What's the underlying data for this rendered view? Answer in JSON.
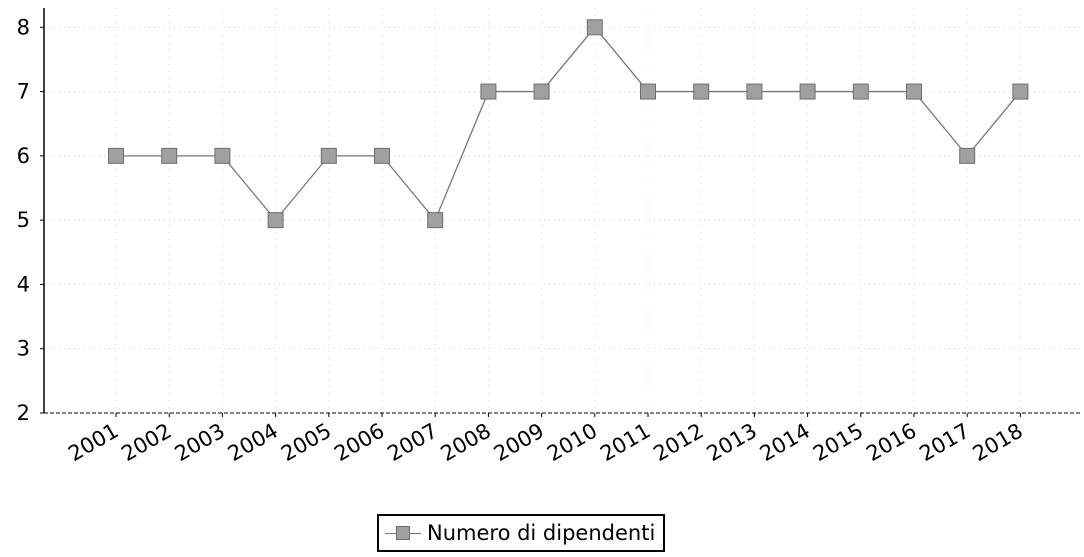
{
  "chart_data": {
    "type": "line",
    "categories": [
      "2001",
      "2002",
      "2003",
      "2004",
      "2005",
      "2006",
      "2007",
      "2008",
      "2009",
      "2010",
      "2011",
      "2012",
      "2013",
      "2014",
      "2015",
      "2016",
      "2017",
      "2018"
    ],
    "series": [
      {
        "name": "Numero di dipendenti",
        "values": [
          6,
          6,
          6,
          5,
          6,
          6,
          5,
          7,
          7,
          8,
          7,
          7,
          7,
          7,
          7,
          7,
          6,
          7
        ]
      }
    ],
    "yticks": [
      "2",
      "3",
      "4",
      "5",
      "6",
      "7",
      "8"
    ],
    "ylim": [
      2,
      8.3
    ],
    "grid": true,
    "legend_position": "bottom-center",
    "colors": {
      "line": "#777777",
      "marker": "#a0a0a0",
      "marker_border": "#6d6d6d"
    }
  }
}
